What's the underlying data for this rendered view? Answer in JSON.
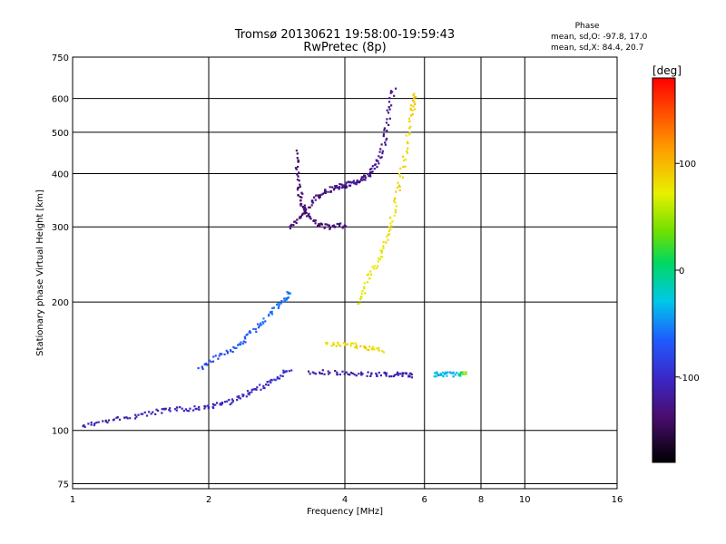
{
  "header": {
    "title": "Tromsø 20130621 19:58:00-19:59:43",
    "subtitle": "RwPretec (8p)",
    "stats_title": "Phase",
    "stats_o": "mean, sd,O: -97.8, 17.0",
    "stats_x": "mean, sd,X:  84.4, 20.7"
  },
  "colorbar": {
    "unit": "[deg]",
    "ticks": [
      "100",
      "0",
      "-100"
    ],
    "tick_values": [
      100,
      0,
      -100
    ],
    "range": [
      -180,
      180
    ]
  },
  "chart_data": {
    "type": "scatter",
    "xlabel": "Frequency [MHz]",
    "ylabel": "Stationary phase Virtual Height [km]",
    "x_scale": "log",
    "y_scale": "log",
    "xlim": [
      1,
      16
    ],
    "ylim": [
      73,
      750
    ],
    "x_ticks": [
      1,
      2,
      4,
      6,
      8,
      10,
      16
    ],
    "x_tick_labels": [
      "1",
      "2",
      "4",
      "6",
      "8",
      "10",
      "16"
    ],
    "y_ticks": [
      75,
      100,
      200,
      300,
      400,
      500,
      600,
      750
    ],
    "y_tick_labels": [
      "75",
      "100",
      "200",
      "300",
      "400",
      "500",
      "600",
      "750"
    ],
    "grid": true,
    "series": [
      {
        "values": [
          [
            1.05,
            103,
            -110
          ],
          [
            1.2,
            106,
            -110
          ],
          [
            1.4,
            109,
            -108
          ],
          [
            1.6,
            112,
            -105
          ],
          [
            1.8,
            113,
            -105
          ],
          [
            2.0,
            114,
            -105
          ],
          [
            2.2,
            117,
            -100
          ],
          [
            2.4,
            122,
            -100
          ],
          [
            2.6,
            127,
            -100
          ],
          [
            2.8,
            132,
            -95
          ],
          [
            3.0,
            140,
            -95
          ]
        ]
      },
      {
        "values": [
          [
            1.9,
            140,
            -80
          ],
          [
            2.1,
            150,
            -75
          ],
          [
            2.3,
            158,
            -70
          ],
          [
            2.5,
            172,
            -65
          ],
          [
            2.7,
            188,
            -60
          ],
          [
            2.9,
            200,
            -55
          ],
          [
            3.0,
            212,
            -55
          ]
        ]
      },
      {
        "values": [
          [
            3.0,
            300,
            -135
          ],
          [
            3.2,
            320,
            -135
          ],
          [
            3.4,
            350,
            -130
          ],
          [
            3.6,
            365,
            -130
          ],
          [
            3.8,
            372,
            -130
          ],
          [
            4.0,
            378,
            -125
          ],
          [
            4.2,
            384,
            -125
          ],
          [
            4.4,
            392,
            -125
          ],
          [
            4.6,
            410,
            -125
          ],
          [
            4.8,
            450,
            -125
          ],
          [
            4.95,
            530,
            -125
          ],
          [
            5.1,
            640,
            -125
          ]
        ]
      },
      {
        "values": [
          [
            3.1,
            450,
            -135
          ],
          [
            3.15,
            380,
            -135
          ],
          [
            3.2,
            340,
            -135
          ],
          [
            3.3,
            320,
            -135
          ],
          [
            3.5,
            305,
            -135
          ],
          [
            3.7,
            300,
            -130
          ],
          [
            4.0,
            305,
            -130
          ]
        ]
      },
      {
        "values": [
          [
            3.3,
            138,
            -115
          ],
          [
            3.8,
            137,
            -115
          ],
          [
            4.3,
            136,
            -112
          ],
          [
            4.8,
            136,
            -110
          ],
          [
            5.3,
            136,
            -110
          ],
          [
            5.6,
            135,
            -110
          ]
        ]
      },
      {
        "values": [
          [
            6.3,
            136,
            -30
          ],
          [
            6.6,
            136,
            -35
          ],
          [
            7.1,
            136,
            -35
          ],
          [
            7.4,
            136,
            60
          ]
        ]
      },
      {
        "values": [
          [
            4.3,
            200,
            70
          ],
          [
            4.5,
            230,
            75
          ],
          [
            4.8,
            260,
            75
          ],
          [
            5.0,
            300,
            80
          ],
          [
            5.2,
            360,
            85
          ],
          [
            5.4,
            440,
            85
          ],
          [
            5.6,
            560,
            90
          ],
          [
            5.7,
            620,
            90
          ]
        ]
      },
      {
        "values": [
          [
            3.6,
            160,
            80
          ],
          [
            4.0,
            160,
            82
          ],
          [
            4.4,
            158,
            85
          ],
          [
            4.8,
            155,
            85
          ]
        ]
      }
    ]
  }
}
